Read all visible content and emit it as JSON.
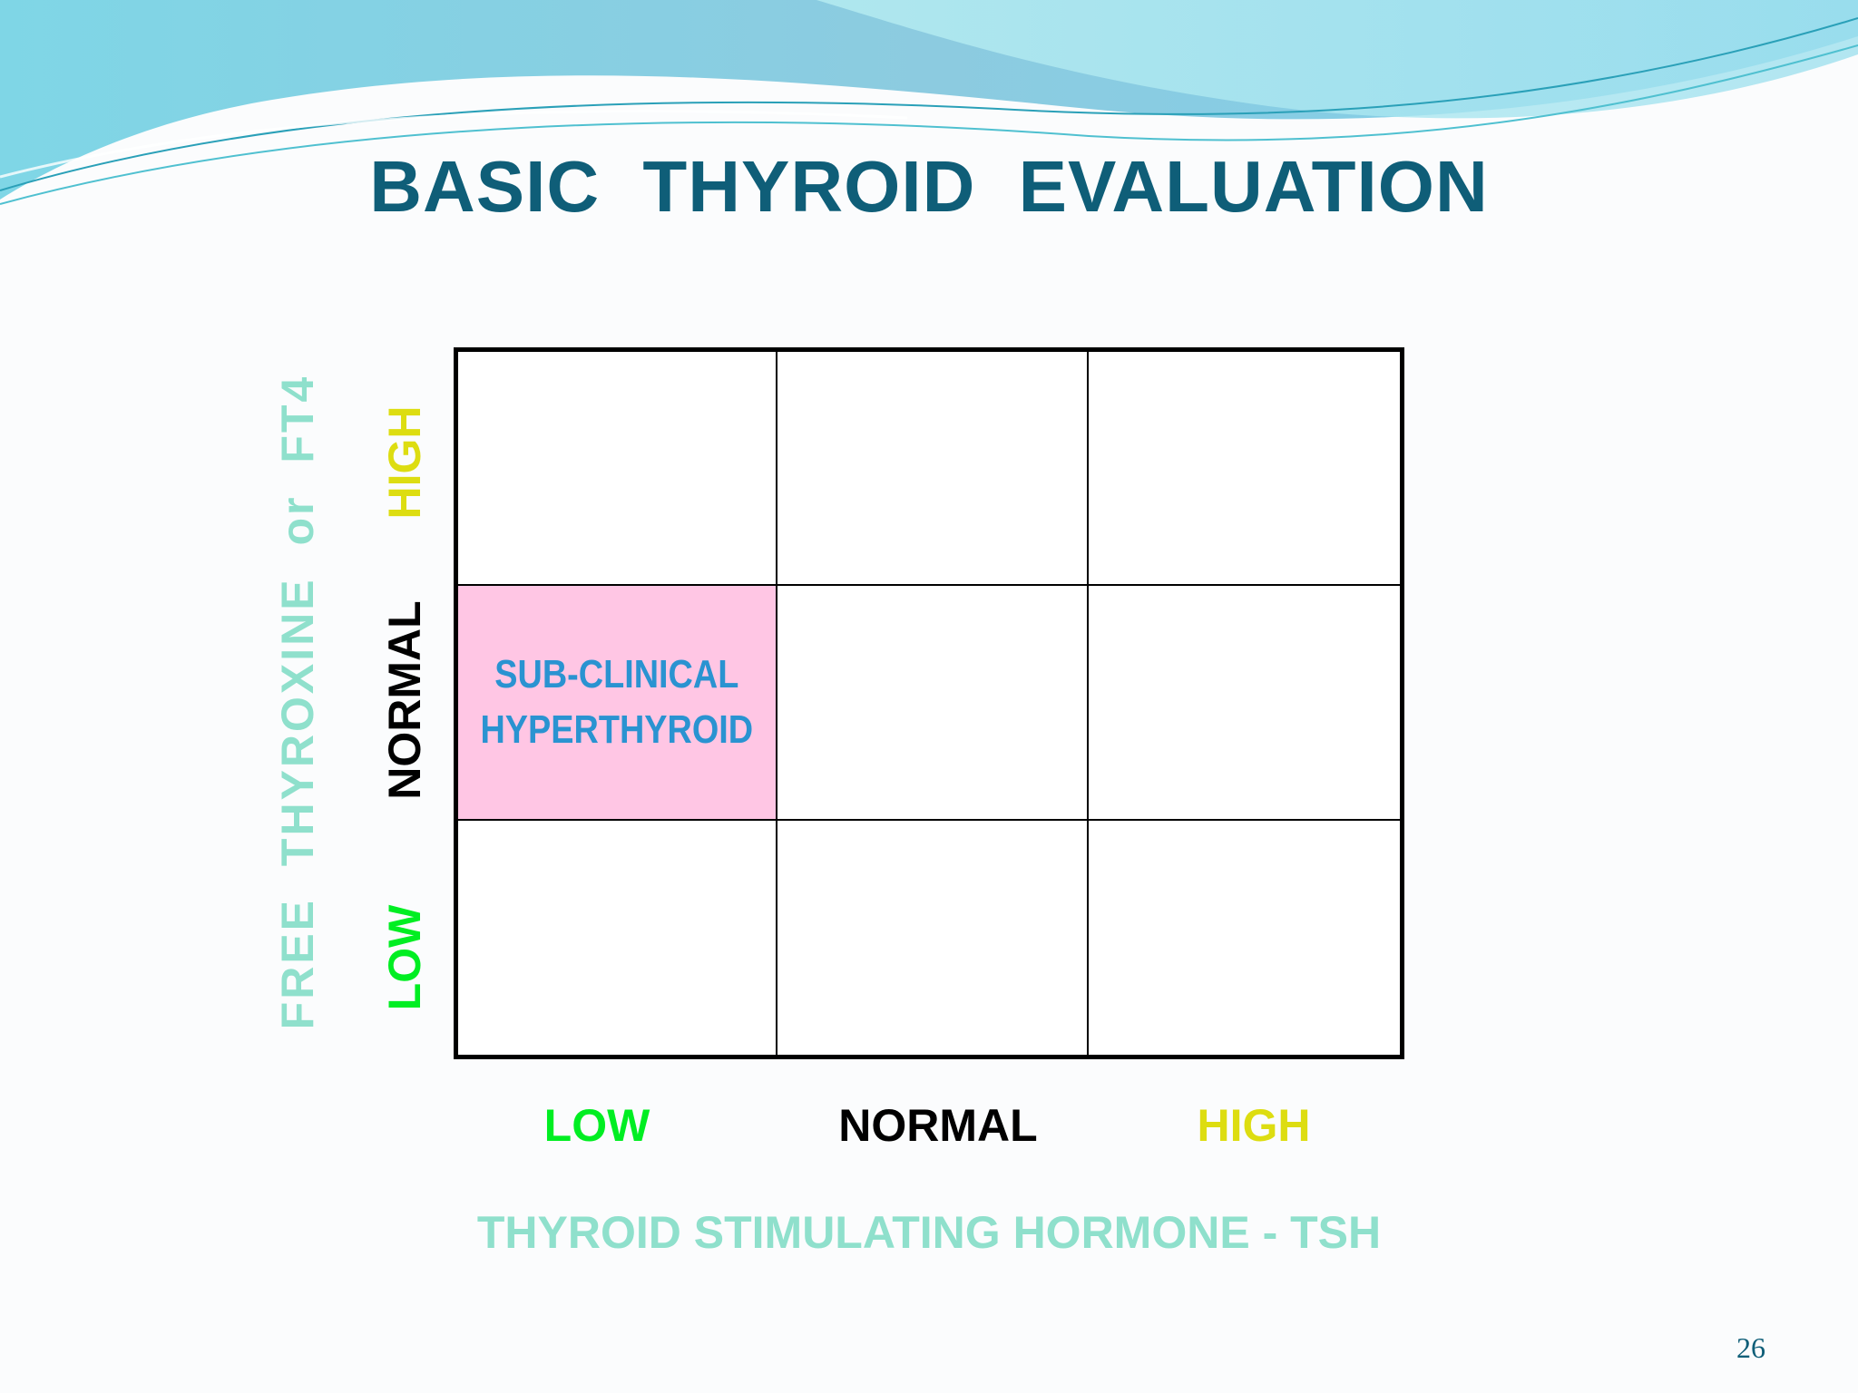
{
  "title": "BASIC  THYROID  EVALUATION",
  "page_number": "26",
  "colors": {
    "title": "#0f5e78",
    "axis_title": "#8fe0cc",
    "low": "#00ee22",
    "normal": "#000000",
    "high": "#dddd11",
    "highlight_fill": "#ffc6e4",
    "highlight_text": "#2a93d1"
  },
  "x_axis": {
    "title": "THYROID STIMULATING HORMONE - TSH",
    "levels": [
      "LOW",
      "NORMAL",
      "HIGH"
    ]
  },
  "y_axis": {
    "title": "FREE  THYROXINE  or  FT4",
    "levels": [
      "LOW",
      "NORMAL",
      "HIGH"
    ]
  },
  "grid": {
    "rows": [
      [
        "",
        "",
        ""
      ],
      [
        "SUB-CLINICAL HYPERTHYROID",
        "",
        ""
      ],
      [
        "",
        "",
        ""
      ]
    ],
    "highlighted": {
      "row": 1,
      "col": 0
    },
    "highlight_lines": [
      "SUB-CLINICAL",
      "HYPERTHYROID"
    ]
  }
}
